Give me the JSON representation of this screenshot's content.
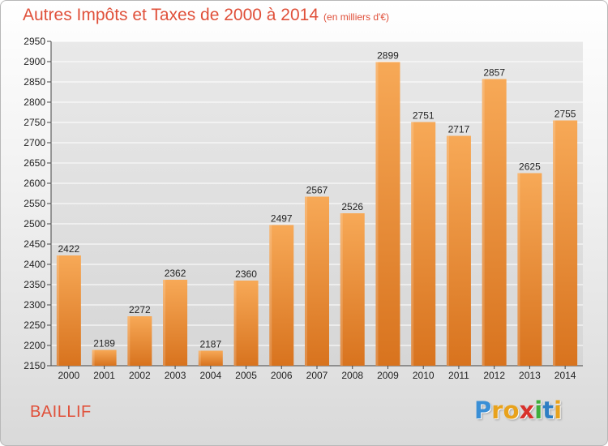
{
  "header": {
    "title": "Autres Impôts et Taxes de 2000 à 2014",
    "subtitle": "(en milliers d'€)"
  },
  "footer": {
    "commune": "BAILLIF",
    "logo": [
      "P",
      "r",
      "o",
      "x",
      "i",
      "t",
      "i"
    ],
    "logo_colors": [
      "#3a8fd6",
      "#e8a21c",
      "#e8a21c",
      "#d8312c",
      "#3fae3b",
      "#2f7fc4",
      "#e8a21c"
    ]
  },
  "colors": {
    "bar_top": "#f7a957",
    "bar_bottom": "#d8731e",
    "grid": "#ffffff",
    "title": "#e0503a"
  },
  "chart_data": {
    "type": "bar",
    "title": "Autres Impôts et Taxes de 2000 à 2014",
    "subtitle": "(en milliers d'€)",
    "categories": [
      "2000",
      "2001",
      "2002",
      "2003",
      "2004",
      "2005",
      "2006",
      "2007",
      "2008",
      "2009",
      "2010",
      "2011",
      "2012",
      "2013",
      "2014"
    ],
    "values": [
      2422,
      2189,
      2272,
      2362,
      2187,
      2360,
      2497,
      2567,
      2526,
      2899,
      2751,
      2717,
      2857,
      2625,
      2755
    ],
    "ylim": [
      2150,
      2950
    ],
    "yticks": [
      2150,
      2200,
      2250,
      2300,
      2350,
      2400,
      2450,
      2500,
      2550,
      2600,
      2650,
      2700,
      2750,
      2800,
      2850,
      2900,
      2950
    ],
    "grid": true,
    "data_labels": true,
    "xlabel": "",
    "ylabel": ""
  }
}
